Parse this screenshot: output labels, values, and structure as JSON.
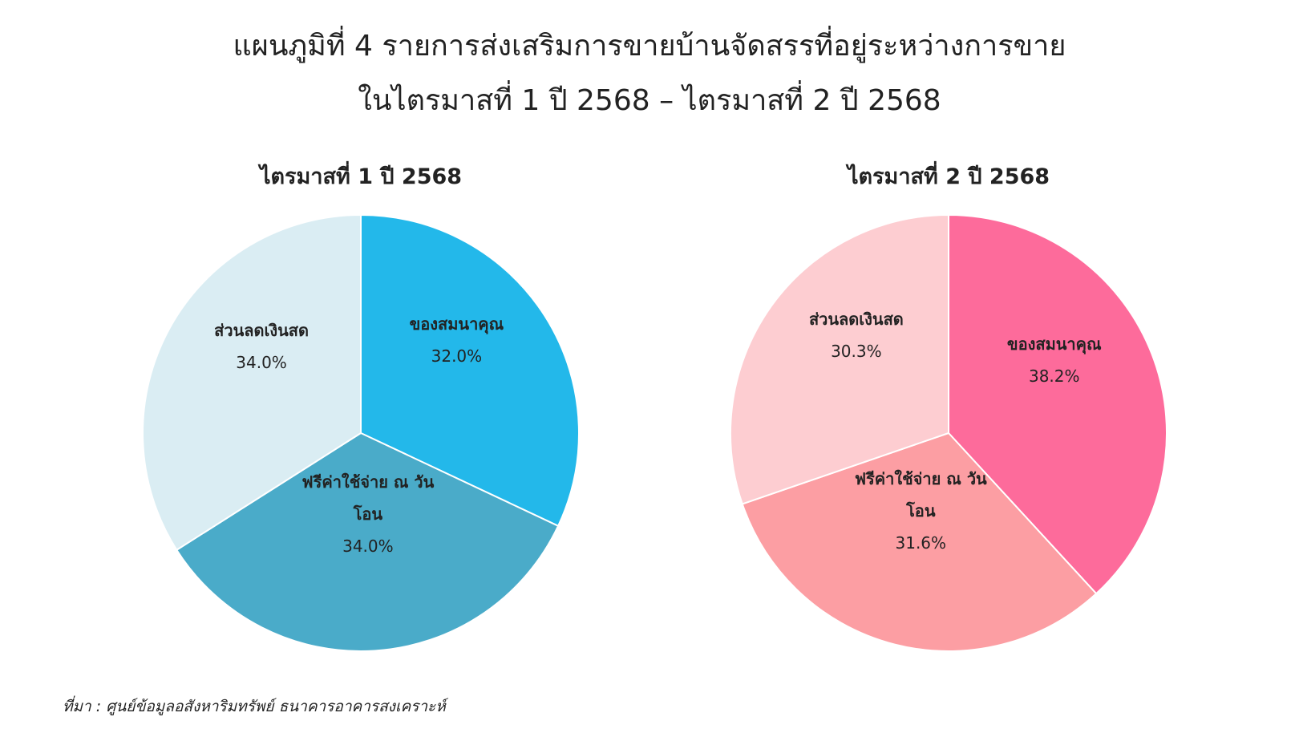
{
  "title": [
    "แผนภูมิที่ 4 รายการส่งเสริมการขายบ้านจัดสรรที่อยู่ระหว่างการขาย",
    "ในไตรมาสที่ 1 ปี 2568 – ไตรมาสที่ 2 ปี 2568"
  ],
  "source": "ที่มา : ศูนย์ข้อมูลอสังหาริมทรัพย์ ธนาคารอาคารสงเคราะห์",
  "chart_data": [
    {
      "type": "pie",
      "title": "ไตรมาสที่ 1 ปี 2568",
      "categories": [
        "ของสมนาคุณ",
        "ฟรีค่าใช้จ่าย ณ วันโอน",
        "ส่วนลดเงินสด"
      ],
      "values": [
        32.0,
        34.0,
        34.0
      ],
      "value_labels": [
        "32.0%",
        "34.0%",
        "34.0%"
      ],
      "colors": [
        "#23b8ea",
        "#4aabc9",
        "#daedf3"
      ]
    },
    {
      "type": "pie",
      "title": "ไตรมาสที่ 2 ปี 2568",
      "categories": [
        "ของสมนาคุณ",
        "ฟรีค่าใช้จ่าย ณ วันโอน",
        "ส่วนลดเงินสด"
      ],
      "values": [
        38.2,
        31.6,
        30.3
      ],
      "value_labels": [
        "38.2%",
        "31.6%",
        "30.3%"
      ],
      "colors": [
        "#fd6b9b",
        "#fc9ea3",
        "#fdcdd1"
      ]
    }
  ]
}
